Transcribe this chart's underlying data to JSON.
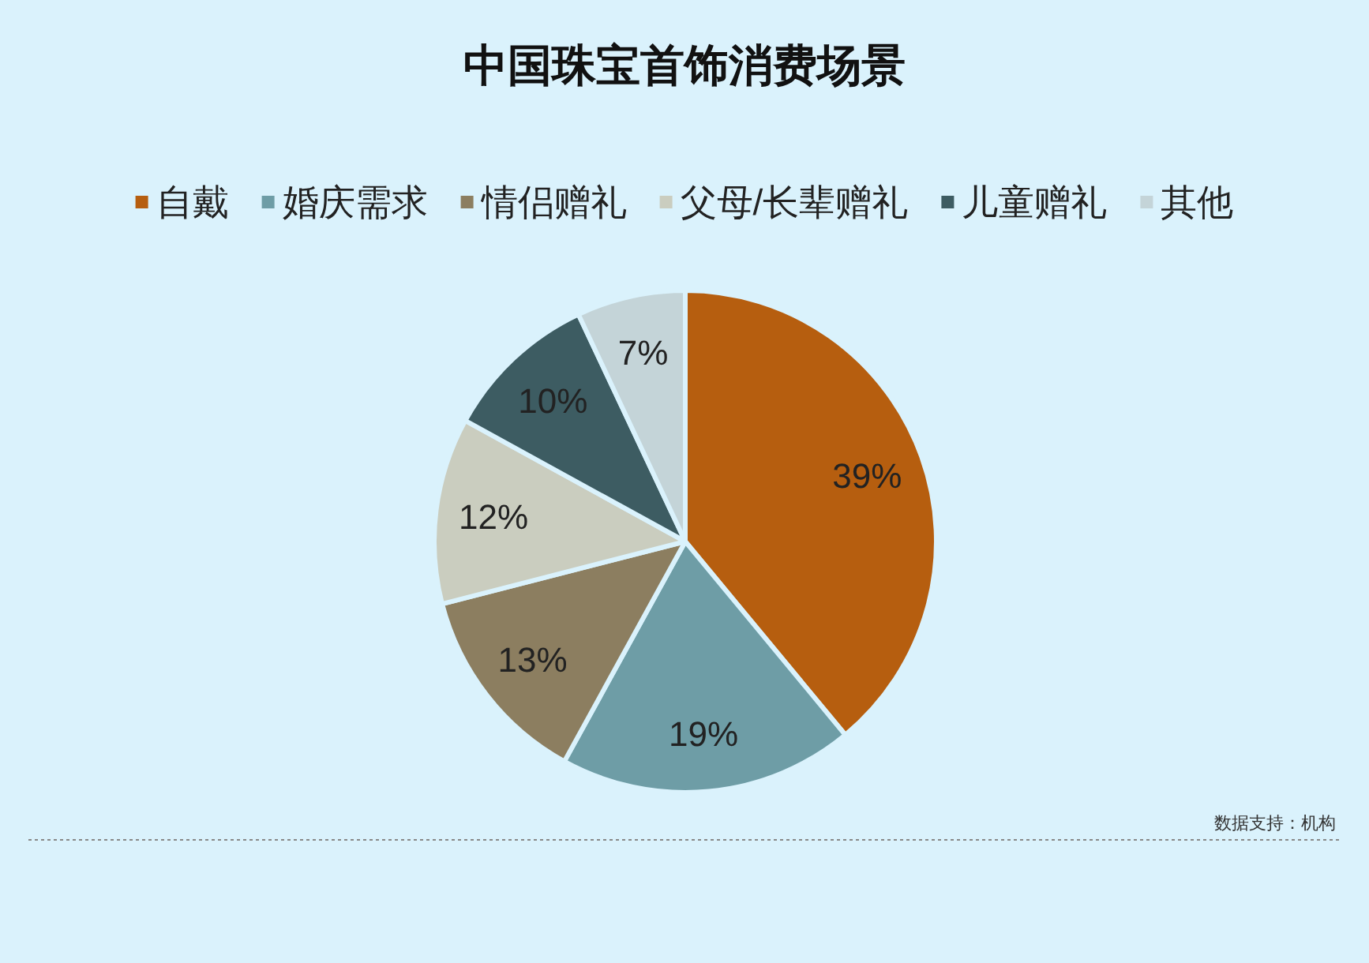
{
  "chart_data": {
    "type": "pie",
    "title": "中国珠宝首饰消费场景",
    "categories": [
      "自戴",
      "婚庆需求",
      "情侣赠礼",
      "父母/长辈赠礼",
      "儿童赠礼",
      "其他"
    ],
    "values": [
      39,
      19,
      13,
      12,
      10,
      7
    ],
    "value_labels": [
      "39%",
      "19%",
      "13%",
      "12%",
      "10%",
      "7%"
    ],
    "colors": [
      "#b65e0f",
      "#6e9da6",
      "#8c7e60",
      "#cacdbf",
      "#3d5c62",
      "#c4d4d8"
    ],
    "legend": "top",
    "annotations": [
      "数据支持：机构"
    ]
  }
}
